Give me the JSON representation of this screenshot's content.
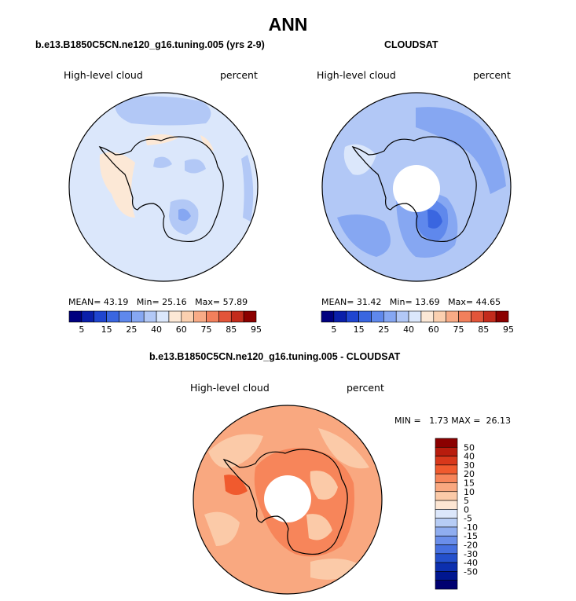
{
  "page_title": "ANN",
  "panels": [
    {
      "title": "b.e13.B1850C5CN.ne120_g16.tuning.005 (yrs 2-9)",
      "left_label": "High-level cloud",
      "right_label": "percent",
      "stats": {
        "mean_label": "MEAN=",
        "mean": "43.19",
        "min_label": "Min=",
        "min": "25.16",
        "max_label": "Max=",
        "max": "57.89"
      }
    },
    {
      "title": "CLOUDSAT",
      "left_label": "High-level cloud",
      "right_label": "percent",
      "stats": {
        "mean_label": "MEAN=",
        "mean": "31.42",
        "min_label": "Min=",
        "min": "13.69",
        "max_label": "Max=",
        "max": "44.65"
      }
    },
    {
      "title": "b.e13.B1850C5CN.ne120_g16.tuning.005 - CLOUDSAT",
      "left_label": "High-level cloud",
      "right_label": "percent",
      "stats": {
        "min_label": "MIN =",
        "min": "1.73",
        "max_label": "MAX =",
        "max": "26.13"
      }
    }
  ],
  "colorbars": {
    "absolute": {
      "colors": [
        "#00007f",
        "#0a1faa",
        "#1f45d0",
        "#3a66e0",
        "#5f88ec",
        "#86a7f2",
        "#b2c8f6",
        "#dbe7fb",
        "#fce8d6",
        "#fbd0b0",
        "#f8ab86",
        "#f2805c",
        "#e2553a",
        "#c32b1c",
        "#8b0000"
      ],
      "labels": [
        "5",
        "15",
        "25",
        "40",
        "60",
        "75",
        "85",
        "95"
      ]
    },
    "difference": {
      "colors": [
        "#8b0000",
        "#b81c0d",
        "#d8381b",
        "#f05a2e",
        "#f7855a",
        "#f9a880",
        "#fbcaa8",
        "#fde6d3",
        "#dce7fb",
        "#b6ccf5",
        "#8fadf0",
        "#6a8eea",
        "#4670e0",
        "#2450cc",
        "#0c2fae",
        "#001690",
        "#000070"
      ],
      "labels": [
        "50",
        "40",
        "30",
        "20",
        "15",
        "10",
        "5",
        "0",
        "-5",
        "-10",
        "-15",
        "-20",
        "-30",
        "-40",
        "-50"
      ]
    }
  },
  "chart_data": [
    {
      "type": "heatmap",
      "title": "b.e13.B1850C5CN.ne120_g16.tuning.005 (yrs 2-9)",
      "subtitle": "High-level cloud",
      "units": "percent",
      "projection": "south polar stereographic",
      "summary": {
        "mean": 43.19,
        "min": 25.16,
        "max": 57.89
      },
      "levels": [
        5,
        15,
        25,
        40,
        60,
        75,
        85,
        95
      ],
      "dominant_range": [
        40,
        60
      ]
    },
    {
      "type": "heatmap",
      "title": "CLOUDSAT",
      "subtitle": "High-level cloud",
      "units": "percent",
      "projection": "south polar stereographic",
      "summary": {
        "mean": 31.42,
        "min": 13.69,
        "max": 44.65
      },
      "levels": [
        5,
        15,
        25,
        40,
        60,
        75,
        85,
        95
      ],
      "dominant_range": [
        25,
        40
      ],
      "missing_data": "polar cap"
    },
    {
      "type": "heatmap",
      "title": "b.e13.B1850C5CN.ne120_g16.tuning.005 - CLOUDSAT",
      "subtitle": "High-level cloud",
      "units": "percent",
      "projection": "south polar stereographic",
      "summary": {
        "min": 1.73,
        "max": 26.13
      },
      "levels": [
        -50,
        -40,
        -30,
        -20,
        -15,
        -10,
        -5,
        0,
        5,
        10,
        15,
        20,
        30,
        40,
        50
      ],
      "dominant_range": [
        5,
        20
      ],
      "missing_data": "polar cap"
    }
  ]
}
